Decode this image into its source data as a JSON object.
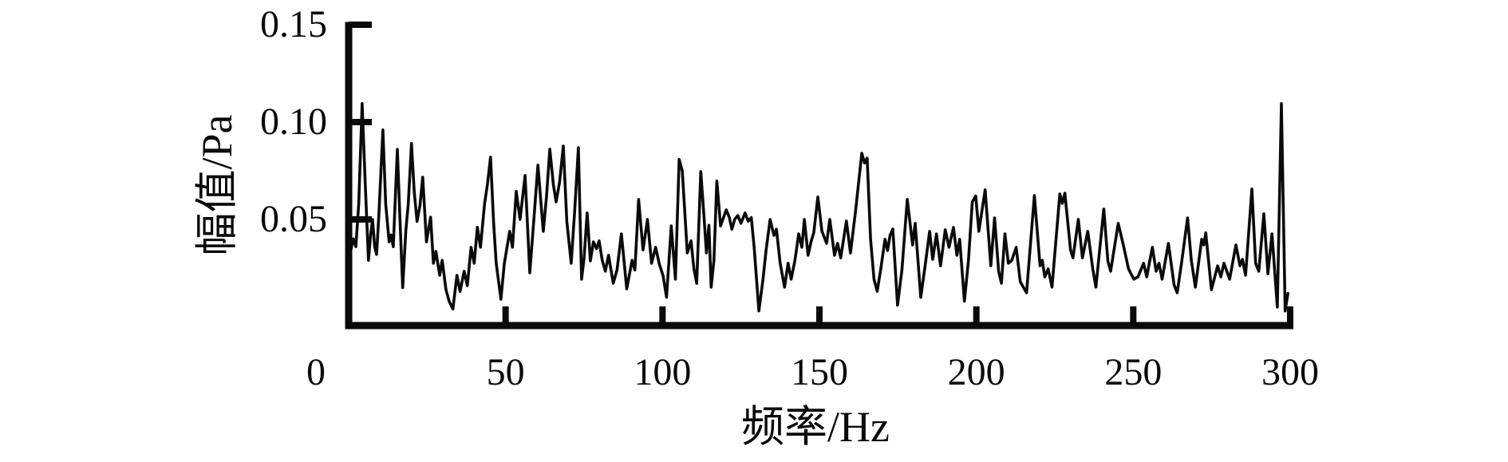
{
  "figure": {
    "background": "#ffffff",
    "axis_color": "#0a0a0a"
  },
  "chart_data": {
    "type": "line",
    "title": "",
    "xlabel": "频率/Hz",
    "ylabel": "幅值/Pa",
    "xlim": [
      0,
      300
    ],
    "ylim": [
      0,
      0.15
    ],
    "grid": false,
    "legend": "none",
    "x_ticks": [
      {
        "value": 0,
        "label": "0"
      },
      {
        "value": 50,
        "label": "50"
      },
      {
        "value": 100,
        "label": "100"
      },
      {
        "value": 150,
        "label": "150"
      },
      {
        "value": 200,
        "label": "200"
      },
      {
        "value": 250,
        "label": "250"
      },
      {
        "value": 300,
        "label": "300"
      }
    ],
    "y_ticks": [
      {
        "value": 0.05,
        "label": "0.05"
      },
      {
        "value": 0.1,
        "label": "0.10"
      },
      {
        "value": 0.15,
        "label": "0.15"
      }
    ],
    "series": [
      {
        "name": "amplitude-spectrum",
        "color": "#0a0a0a",
        "points": [
          [
            0.5,
            0.033
          ],
          [
            1.5,
            0.04
          ],
          [
            2.3,
            0.036
          ],
          [
            3.2,
            0.058
          ],
          [
            4.3,
            0.1095
          ],
          [
            5.3,
            0.068
          ],
          [
            6.3,
            0.029
          ],
          [
            7.0,
            0.042
          ],
          [
            7.6,
            0.05
          ],
          [
            8.3,
            0.036
          ],
          [
            8.9,
            0.032
          ],
          [
            9.6,
            0.052
          ],
          [
            10.9,
            0.096
          ],
          [
            11.8,
            0.058
          ],
          [
            12.9,
            0.0385
          ],
          [
            13.5,
            0.042
          ],
          [
            14.2,
            0.036
          ],
          [
            15.5,
            0.086
          ],
          [
            16.3,
            0.052
          ],
          [
            17.2,
            0.015
          ],
          [
            18.2,
            0.044
          ],
          [
            19.0,
            0.058
          ],
          [
            20.0,
            0.089
          ],
          [
            20.9,
            0.064
          ],
          [
            21.8,
            0.049
          ],
          [
            22.7,
            0.057
          ],
          [
            23.6,
            0.0717
          ],
          [
            24.8,
            0.0385
          ],
          [
            26.1,
            0.0512
          ],
          [
            27.0,
            0.0275
          ],
          [
            27.8,
            0.0336
          ],
          [
            29.0,
            0.0213
          ],
          [
            29.8,
            0.029
          ],
          [
            31.0,
            0.014
          ],
          [
            32.0,
            0.008
          ],
          [
            33.2,
            0.004
          ],
          [
            34.5,
            0.0213
          ],
          [
            35.5,
            0.013
          ],
          [
            36.8,
            0.0234
          ],
          [
            37.8,
            0.016
          ],
          [
            39.0,
            0.0357
          ],
          [
            40.0,
            0.0275
          ],
          [
            41.0,
            0.046
          ],
          [
            42.0,
            0.0357
          ],
          [
            43.3,
            0.058
          ],
          [
            44.2,
            0.068
          ],
          [
            45.2,
            0.082
          ],
          [
            46.2,
            0.048
          ],
          [
            47.0,
            0.0275
          ],
          [
            48.5,
            0.009
          ],
          [
            49.6,
            0.0275
          ],
          [
            51.3,
            0.0439
          ],
          [
            52.2,
            0.0357
          ],
          [
            53.4,
            0.0644
          ],
          [
            54.6,
            0.05
          ],
          [
            56.2,
            0.0726
          ],
          [
            57.7,
            0.0226
          ],
          [
            59.0,
            0.05
          ],
          [
            60.3,
            0.0779
          ],
          [
            61.3,
            0.058
          ],
          [
            62.0,
            0.0439
          ],
          [
            63.0,
            0.061
          ],
          [
            64.1,
            0.0861
          ],
          [
            65.2,
            0.068
          ],
          [
            66.1,
            0.059
          ],
          [
            67.2,
            0.069
          ],
          [
            68.4,
            0.0877
          ],
          [
            69.5,
            0.049
          ],
          [
            70.9,
            0.0275
          ],
          [
            72.0,
            0.054
          ],
          [
            73.2,
            0.0869
          ],
          [
            74.2,
            0.0193
          ],
          [
            75.0,
            0.03
          ],
          [
            76.0,
            0.0533
          ],
          [
            77.0,
            0.0287
          ],
          [
            78.0,
            0.0385
          ],
          [
            79.0,
            0.035
          ],
          [
            79.8,
            0.039
          ],
          [
            80.8,
            0.029
          ],
          [
            81.8,
            0.0234
          ],
          [
            82.8,
            0.0316
          ],
          [
            84.3,
            0.0172
          ],
          [
            85.5,
            0.024
          ],
          [
            86.9,
            0.0426
          ],
          [
            88.6,
            0.0144
          ],
          [
            90.3,
            0.029
          ],
          [
            91.2,
            0.024
          ],
          [
            92.4,
            0.0603
          ],
          [
            93.8,
            0.0344
          ],
          [
            95.2,
            0.05
          ],
          [
            96.5,
            0.0275
          ],
          [
            97.8,
            0.0357
          ],
          [
            99.0,
            0.027
          ],
          [
            100.2,
            0.021
          ],
          [
            101.3,
            0.01
          ],
          [
            102.8,
            0.0467
          ],
          [
            104.1,
            0.0193
          ],
          [
            105.3,
            0.0808
          ],
          [
            106.3,
            0.075
          ],
          [
            107.9,
            0.0328
          ],
          [
            109.1,
            0.039
          ],
          [
            110.0,
            0.0246
          ],
          [
            110.9,
            0.0172
          ],
          [
            112.2,
            0.0746
          ],
          [
            113.1,
            0.054
          ],
          [
            114.0,
            0.0328
          ],
          [
            114.8,
            0.047
          ],
          [
            115.5,
            0.0152
          ],
          [
            116.4,
            0.029
          ],
          [
            117.3,
            0.0697
          ],
          [
            118.5,
            0.0467
          ],
          [
            120.3,
            0.0549
          ],
          [
            121.3,
            0.051
          ],
          [
            122.1,
            0.045
          ],
          [
            123.0,
            0.05
          ],
          [
            124.0,
            0.052
          ],
          [
            125.0,
            0.048
          ],
          [
            126.3,
            0.0533
          ],
          [
            127.3,
            0.049
          ],
          [
            128.3,
            0.051
          ],
          [
            129.2,
            0.0357
          ],
          [
            130.7,
            0.003
          ],
          [
            132.0,
            0.019
          ],
          [
            133.0,
            0.034
          ],
          [
            134.3,
            0.05
          ],
          [
            135.5,
            0.0418
          ],
          [
            136.3,
            0.045
          ],
          [
            137.5,
            0.0275
          ],
          [
            138.9,
            0.0152
          ],
          [
            140.0,
            0.0275
          ],
          [
            141.0,
            0.0193
          ],
          [
            142.2,
            0.029
          ],
          [
            143.4,
            0.0426
          ],
          [
            144.4,
            0.0357
          ],
          [
            145.2,
            0.05
          ],
          [
            146.4,
            0.0316
          ],
          [
            147.4,
            0.039
          ],
          [
            148.2,
            0.0431
          ],
          [
            149.5,
            0.0615
          ],
          [
            150.8,
            0.044
          ],
          [
            152.3,
            0.0377
          ],
          [
            153.3,
            0.05
          ],
          [
            154.8,
            0.0316
          ],
          [
            155.8,
            0.0377
          ],
          [
            156.8,
            0.0303
          ],
          [
            158.6,
            0.0492
          ],
          [
            159.9,
            0.0328
          ],
          [
            161.5,
            0.054
          ],
          [
            163.5,
            0.084
          ],
          [
            164.4,
            0.079
          ],
          [
            165.2,
            0.0815
          ],
          [
            166.3,
            0.0398
          ],
          [
            167.4,
            0.0193
          ],
          [
            168.4,
            0.0131
          ],
          [
            169.5,
            0.024
          ],
          [
            170.9,
            0.0398
          ],
          [
            171.7,
            0.034
          ],
          [
            172.5,
            0.0418
          ],
          [
            173.4,
            0.0451
          ],
          [
            174.9,
            0.006
          ],
          [
            176.3,
            0.024
          ],
          [
            178.0,
            0.0603
          ],
          [
            179.7,
            0.0369
          ],
          [
            180.5,
            0.048
          ],
          [
            182.3,
            0.01
          ],
          [
            183.8,
            0.0275
          ],
          [
            185.1,
            0.0439
          ],
          [
            186.1,
            0.0295
          ],
          [
            187.3,
            0.0426
          ],
          [
            188.6,
            0.0262
          ],
          [
            190.1,
            0.0447
          ],
          [
            191.3,
            0.0357
          ],
          [
            192.7,
            0.0459
          ],
          [
            193.8,
            0.0316
          ],
          [
            194.7,
            0.0398
          ],
          [
            196.2,
            0.008
          ],
          [
            197.5,
            0.029
          ],
          [
            198.7,
            0.059
          ],
          [
            199.8,
            0.062
          ],
          [
            200.8,
            0.0439
          ],
          [
            202.8,
            0.0652
          ],
          [
            204.6,
            0.0262
          ],
          [
            205.8,
            0.0508
          ],
          [
            207.1,
            0.0234
          ],
          [
            208.0,
            0.0172
          ],
          [
            209.1,
            0.0426
          ],
          [
            210.2,
            0.0275
          ],
          [
            211.3,
            0.029
          ],
          [
            212.7,
            0.0357
          ],
          [
            214.0,
            0.018
          ],
          [
            216.0,
            0.0123
          ],
          [
            218.5,
            0.0623
          ],
          [
            220.3,
            0.0262
          ],
          [
            221.0,
            0.029
          ],
          [
            221.8,
            0.0205
          ],
          [
            222.9,
            0.0246
          ],
          [
            224.1,
            0.0152
          ],
          [
            226.6,
            0.0631
          ],
          [
            227.4,
            0.0582
          ],
          [
            228.2,
            0.0635
          ],
          [
            230.0,
            0.0344
          ],
          [
            230.8,
            0.0303
          ],
          [
            232.5,
            0.05
          ],
          [
            233.8,
            0.0303
          ],
          [
            235.5,
            0.0439
          ],
          [
            237.1,
            0.0246
          ],
          [
            238.1,
            0.0152
          ],
          [
            240.6,
            0.0553
          ],
          [
            241.9,
            0.0287
          ],
          [
            242.8,
            0.0234
          ],
          [
            245.2,
            0.048
          ],
          [
            247.0,
            0.0357
          ],
          [
            248.5,
            0.0246
          ],
          [
            250.2,
            0.0193
          ],
          [
            251.5,
            0.0205
          ],
          [
            253.3,
            0.0275
          ],
          [
            254.3,
            0.0205
          ],
          [
            256.1,
            0.0357
          ],
          [
            257.3,
            0.0234
          ],
          [
            258.2,
            0.0275
          ],
          [
            259.2,
            0.0193
          ],
          [
            261.2,
            0.0377
          ],
          [
            263.0,
            0.0164
          ],
          [
            264.0,
            0.0123
          ],
          [
            265.5,
            0.029
          ],
          [
            267.3,
            0.0508
          ],
          [
            268.5,
            0.029
          ],
          [
            269.8,
            0.0152
          ],
          [
            271.8,
            0.0398
          ],
          [
            272.5,
            0.0369
          ],
          [
            273.1,
            0.0431
          ],
          [
            274.9,
            0.0139
          ],
          [
            276.9,
            0.0262
          ],
          [
            277.9,
            0.0205
          ],
          [
            278.9,
            0.0275
          ],
          [
            280.7,
            0.0193
          ],
          [
            282.7,
            0.0369
          ],
          [
            284.0,
            0.0262
          ],
          [
            284.8,
            0.0295
          ],
          [
            285.8,
            0.0213
          ],
          [
            287.8,
            0.0656
          ],
          [
            289.0,
            0.0275
          ],
          [
            290.0,
            0.0234
          ],
          [
            291.6,
            0.0529
          ],
          [
            292.9,
            0.0221
          ],
          [
            294.2,
            0.0426
          ],
          [
            295.9,
            0.005
          ],
          [
            297.2,
            0.1095
          ],
          [
            298.4,
            0.003
          ],
          [
            299.3,
            0.012
          ]
        ]
      }
    ]
  }
}
